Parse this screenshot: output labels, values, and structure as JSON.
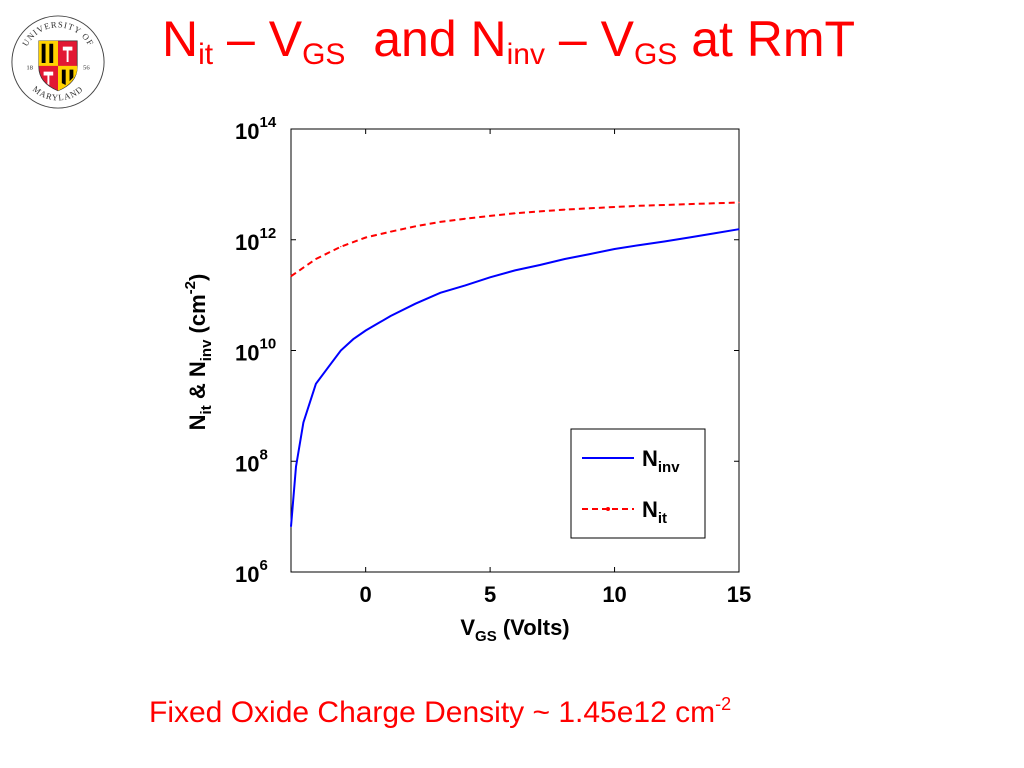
{
  "logo": {
    "top_text": "UNIVERSITY OF",
    "bottom_text": "MARYLAND",
    "year_left": "18",
    "year_right": "56"
  },
  "title": {
    "part1_main": "N",
    "part1_sub": "it",
    "part2": " – V",
    "part2_sub": "GS",
    "part3": "  and N",
    "part3_sub": "inv",
    "part4": " – V",
    "part4_sub": "GS",
    "part5": " at RmT"
  },
  "footer": {
    "text": "Fixed Oxide Charge Density ~ 1.45e12 cm",
    "sup": "-2"
  },
  "colors": {
    "title": "#ff0000",
    "series_ninv": "#0000ff",
    "series_nit": "#ff0000",
    "axis": "#000000"
  },
  "chart_data": {
    "type": "line",
    "xlabel": "V",
    "xlabel_sub": "GS",
    "xlabel_suffix": " (Volts)",
    "ylabel_parts": [
      {
        "t": "N",
        "sub": false
      },
      {
        "t": "it",
        "sub": true
      },
      {
        "t": " & N",
        "sub": false
      },
      {
        "t": "inv",
        "sub": true
      },
      {
        "t": " (cm",
        "sub": false
      },
      {
        "t": "-2",
        "sup": true
      },
      {
        "t": ")",
        "sub": false
      }
    ],
    "xlim": [
      -3,
      15
    ],
    "ylim_log10": [
      6,
      14
    ],
    "y_scale": "log",
    "x_ticks": [
      0,
      5,
      10,
      15
    ],
    "y_ticks": [
      {
        "base": "10",
        "exp": "6",
        "log10": 6
      },
      {
        "base": "10",
        "exp": "8",
        "log10": 8
      },
      {
        "base": "10",
        "exp": "10",
        "log10": 10
      },
      {
        "base": "10",
        "exp": "12",
        "log10": 12
      },
      {
        "base": "10",
        "exp": "14",
        "log10": 14
      }
    ],
    "legend_position": "lower-right",
    "series": [
      {
        "name": "N",
        "name_sub": "inv",
        "style": "solid",
        "color": "#0000ff",
        "x": [
          -3,
          -2.8,
          -2.5,
          -2,
          -1.5,
          -1,
          -0.5,
          0,
          0.5,
          1,
          2,
          3,
          4,
          5,
          6,
          7,
          8,
          9,
          10,
          11,
          12,
          13,
          14,
          15
        ],
        "y": [
          6600000.0,
          80000000.0,
          500000000.0,
          2500000000.0,
          5000000000.0,
          10000000000.0,
          16000000000.0,
          23000000000.0,
          31000000000.0,
          42000000000.0,
          70000000000.0,
          110000000000.0,
          150000000000.0,
          210000000000.0,
          280000000000.0,
          350000000000.0,
          450000000000.0,
          550000000000.0,
          680000000000.0,
          800000000000.0,
          930000000000.0,
          1100000000000.0,
          1300000000000.0,
          1550000000000.0
        ]
      },
      {
        "name": "N",
        "name_sub": "it",
        "style": "dashed",
        "color": "#ff0000",
        "x": [
          -3,
          -2,
          -1,
          0,
          1,
          2,
          3,
          4,
          5,
          6,
          7,
          8,
          9,
          10,
          11,
          12,
          13,
          14,
          15
        ],
        "y": [
          220000000000.0,
          450000000000.0,
          750000000000.0,
          1100000000000.0,
          1400000000000.0,
          1750000000000.0,
          2100000000000.0,
          2400000000000.0,
          2700000000000.0,
          3000000000000.0,
          3250000000000.0,
          3500000000000.0,
          3700000000000.0,
          3900000000000.0,
          4100000000000.0,
          4250000000000.0,
          4400000000000.0,
          4550000000000.0,
          4700000000000.0
        ]
      }
    ]
  }
}
